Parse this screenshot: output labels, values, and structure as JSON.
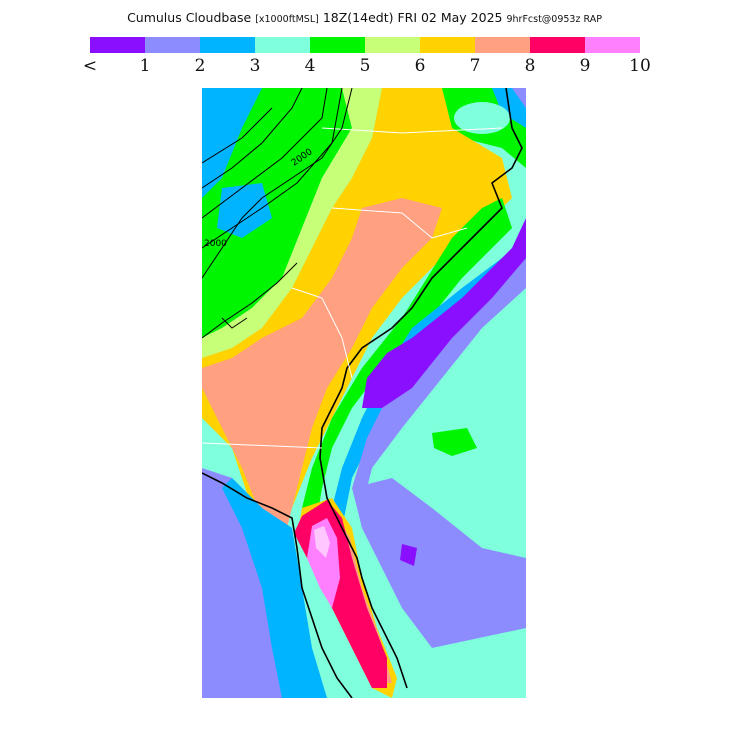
{
  "title": {
    "main": "Cumulus Cloudbase",
    "units": "[x1000ftMSL]",
    "time": "18Z(14edt) FRI 02 May 2025",
    "forecast": "9hrFcst@0953z RAP"
  },
  "color_scale": {
    "swatches": [
      "#8a0fff",
      "#8c8cff",
      "#00b4ff",
      "#80ffdc",
      "#00f500",
      "#c8ff78",
      "#ffd200",
      "#ffa080",
      "#ff0064",
      "#ff80ff"
    ],
    "tick_labels": [
      "<",
      "1",
      "2",
      "3",
      "4",
      "5",
      "6",
      "7",
      "8",
      "9",
      "10"
    ]
  },
  "contour_labels": [
    "2000",
    "2000",
    "2000"
  ]
}
